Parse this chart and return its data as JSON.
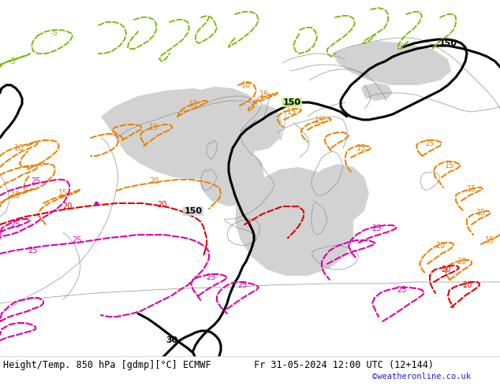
{
  "title_left": "Height/Temp. 850 hPa [gdmp][°C] ECMWF",
  "title_right": "Fr 31-05-2024 12:00 UTC (12+144)",
  "credit": "©weatheronline.co.uk",
  "bg_land_color": "#c8f08a",
  "bg_sea_color": "#d2d2d2",
  "border_color": "#909090",
  "black": "#000000",
  "orange": "#e88000",
  "red": "#dd0000",
  "magenta": "#dd00aa",
  "green": "#78b800",
  "title_fontsize": 8.5,
  "credit_fontsize": 7.5,
  "label_fontsize": 7.5,
  "figsize": [
    6.34,
    4.9
  ],
  "dpi": 100
}
